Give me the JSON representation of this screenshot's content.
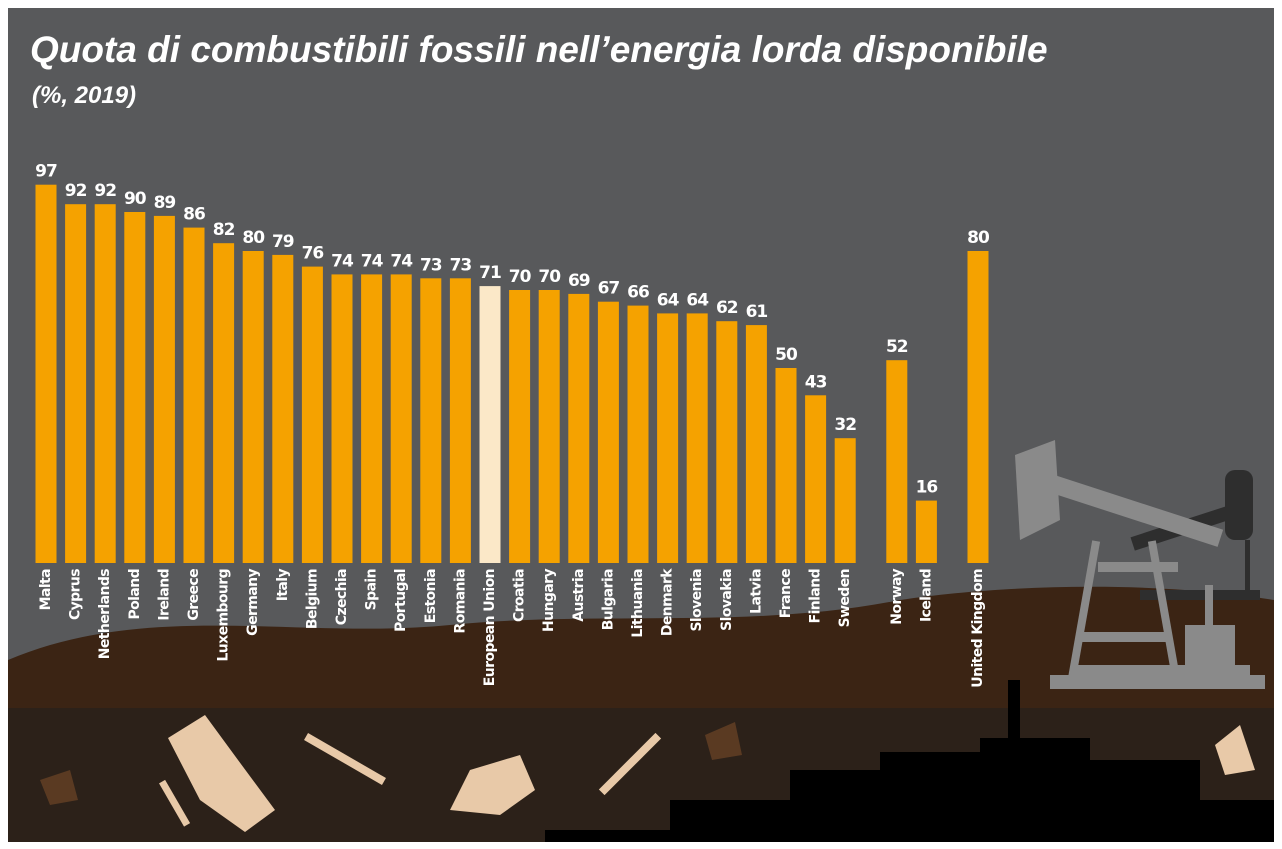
{
  "chart_data": {
    "type": "bar",
    "title": "Quota di combustibili fossili nell’energia lorda disponibile",
    "subtitle": "(%, 2019)",
    "categories": [
      "Malta",
      "Cyprus",
      "Netherlands",
      "Poland",
      "Ireland",
      "Greece",
      "Luxembourg",
      "Germany",
      "Italy",
      "Belgium",
      "Czechia",
      "Spain",
      "Portugal",
      "Estonia",
      "Romania",
      "European Union",
      "Croatia",
      "Hungary",
      "Austria",
      "Bulgaria",
      "Lithuania",
      "Denmark",
      "Slovenia",
      "Slovakia",
      "Latvia",
      "France",
      "Finland",
      "Sweden",
      "Norway",
      "Iceland",
      "United Kingdom"
    ],
    "values": [
      97,
      92,
      92,
      90,
      89,
      86,
      82,
      80,
      79,
      76,
      74,
      74,
      74,
      73,
      73,
      71,
      70,
      70,
      69,
      67,
      66,
      64,
      64,
      62,
      61,
      50,
      43,
      32,
      52,
      16,
      80
    ],
    "colors": [
      "#f5a200",
      "#f5a200",
      "#f5a200",
      "#f5a200",
      "#f5a200",
      "#f5a200",
      "#f5a200",
      "#f5a200",
      "#f5a200",
      "#f5a200",
      "#f5a200",
      "#f5a200",
      "#f5a200",
      "#f5a200",
      "#f5a200",
      "#fbe8c8",
      "#f5a200",
      "#f5a200",
      "#f5a200",
      "#f5a200",
      "#f5a200",
      "#f5a200",
      "#f5a200",
      "#f5a200",
      "#f5a200",
      "#f5a200",
      "#f5a200",
      "#f5a200",
      "#f5a200",
      "#f5a200",
      "#f5a200"
    ]
  }
}
